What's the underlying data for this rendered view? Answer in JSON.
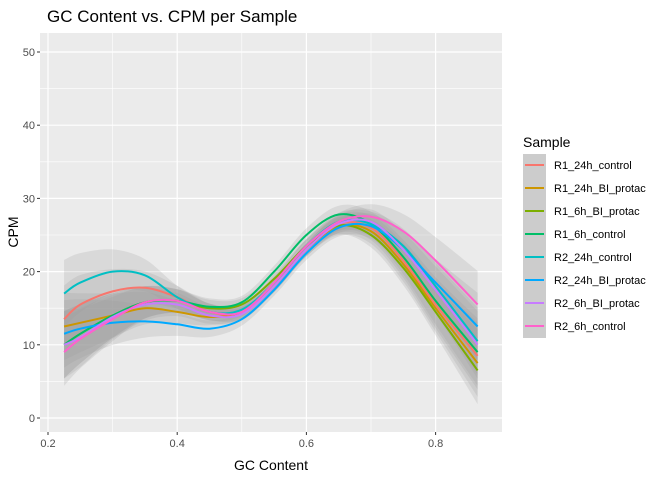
{
  "chart_data": {
    "type": "line",
    "title": "GC Content vs. CPM per Sample",
    "xlabel": "GC Content",
    "ylabel": "CPM",
    "xlim": [
      0.2,
      0.9
    ],
    "ylim": [
      0,
      50
    ],
    "x_ticks": [
      0.2,
      0.4,
      0.6,
      0.8
    ],
    "x_tick_labels": [
      "0.2",
      "0.4",
      "0.6",
      "0.8"
    ],
    "y_ticks": [
      0,
      10,
      20,
      30,
      40,
      50
    ],
    "y_tick_labels": [
      "0",
      "10",
      "20",
      "30",
      "40",
      "50"
    ],
    "grid": true,
    "legend_title": "Sample",
    "legend_position": "right",
    "confidence_band": true,
    "series": [
      {
        "name": "R1_24h_control",
        "color": "#F8766D",
        "x": [
          0.225,
          0.25,
          0.3,
          0.35,
          0.4,
          0.45,
          0.5,
          0.55,
          0.6,
          0.65,
          0.7,
          0.75,
          0.8,
          0.865
        ],
        "y": [
          13.5,
          15.5,
          17.3,
          17.8,
          16.5,
          14.5,
          14.3,
          18.0,
          23.0,
          26.5,
          26.0,
          21.5,
          15.5,
          8.5
        ]
      },
      {
        "name": "R1_24h_BI_protac",
        "color": "#CD9600",
        "x": [
          0.225,
          0.25,
          0.3,
          0.35,
          0.4,
          0.45,
          0.5,
          0.55,
          0.6,
          0.65,
          0.7,
          0.75,
          0.8,
          0.865
        ],
        "y": [
          12.5,
          13.0,
          14.0,
          15.0,
          14.5,
          13.8,
          14.5,
          18.0,
          23.0,
          26.2,
          25.5,
          21.0,
          15.0,
          7.5
        ]
      },
      {
        "name": "R1_6h_BI_protac",
        "color": "#7CAE00",
        "x": [
          0.225,
          0.25,
          0.3,
          0.35,
          0.4,
          0.45,
          0.5,
          0.55,
          0.6,
          0.65,
          0.7,
          0.75,
          0.8,
          0.865
        ],
        "y": [
          10.0,
          11.5,
          14.0,
          15.8,
          16.0,
          15.0,
          15.5,
          19.0,
          23.5,
          26.3,
          25.0,
          20.5,
          14.5,
          6.5
        ]
      },
      {
        "name": "R1_6h_control",
        "color": "#00BE67",
        "x": [
          0.225,
          0.25,
          0.3,
          0.35,
          0.4,
          0.45,
          0.5,
          0.55,
          0.6,
          0.65,
          0.7,
          0.75,
          0.8,
          0.865
        ],
        "y": [
          10.0,
          11.5,
          14.0,
          15.8,
          16.0,
          15.2,
          15.8,
          20.0,
          25.0,
          27.8,
          26.5,
          22.0,
          16.0,
          9.0
        ]
      },
      {
        "name": "R2_24h_control",
        "color": "#00BFC4",
        "x": [
          0.225,
          0.25,
          0.3,
          0.35,
          0.4,
          0.45,
          0.5,
          0.55,
          0.6,
          0.65,
          0.7,
          0.75,
          0.8,
          0.865
        ],
        "y": [
          17.0,
          18.5,
          20.0,
          19.5,
          16.5,
          14.5,
          14.8,
          18.5,
          23.5,
          26.8,
          26.5,
          23.5,
          18.0,
          10.5
        ]
      },
      {
        "name": "R2_24h_BI_protac",
        "color": "#00A9FF",
        "x": [
          0.225,
          0.25,
          0.3,
          0.35,
          0.4,
          0.45,
          0.5,
          0.55,
          0.6,
          0.65,
          0.7,
          0.75,
          0.8,
          0.865
        ],
        "y": [
          11.5,
          12.2,
          13.0,
          13.2,
          12.8,
          12.2,
          13.5,
          17.5,
          22.5,
          26.0,
          26.2,
          23.0,
          18.5,
          12.5
        ]
      },
      {
        "name": "R2_6h_BI_protac",
        "color": "#C77CFF",
        "x": [
          0.225,
          0.25,
          0.3,
          0.35,
          0.4,
          0.45,
          0.5,
          0.55,
          0.6,
          0.65,
          0.7,
          0.75,
          0.8,
          0.865
        ],
        "y": [
          10.0,
          11.0,
          13.8,
          15.5,
          15.5,
          14.0,
          14.2,
          18.0,
          23.0,
          26.5,
          26.8,
          23.0,
          17.5,
          10.0
        ]
      },
      {
        "name": "R2_6h_control",
        "color": "#FF61CC",
        "x": [
          0.225,
          0.25,
          0.3,
          0.35,
          0.4,
          0.45,
          0.5,
          0.55,
          0.6,
          0.65,
          0.7,
          0.75,
          0.8,
          0.865
        ],
        "y": [
          9.0,
          10.8,
          13.5,
          15.8,
          16.0,
          14.5,
          14.5,
          18.5,
          23.5,
          26.8,
          27.5,
          25.5,
          21.5,
          15.5
        ]
      }
    ]
  }
}
